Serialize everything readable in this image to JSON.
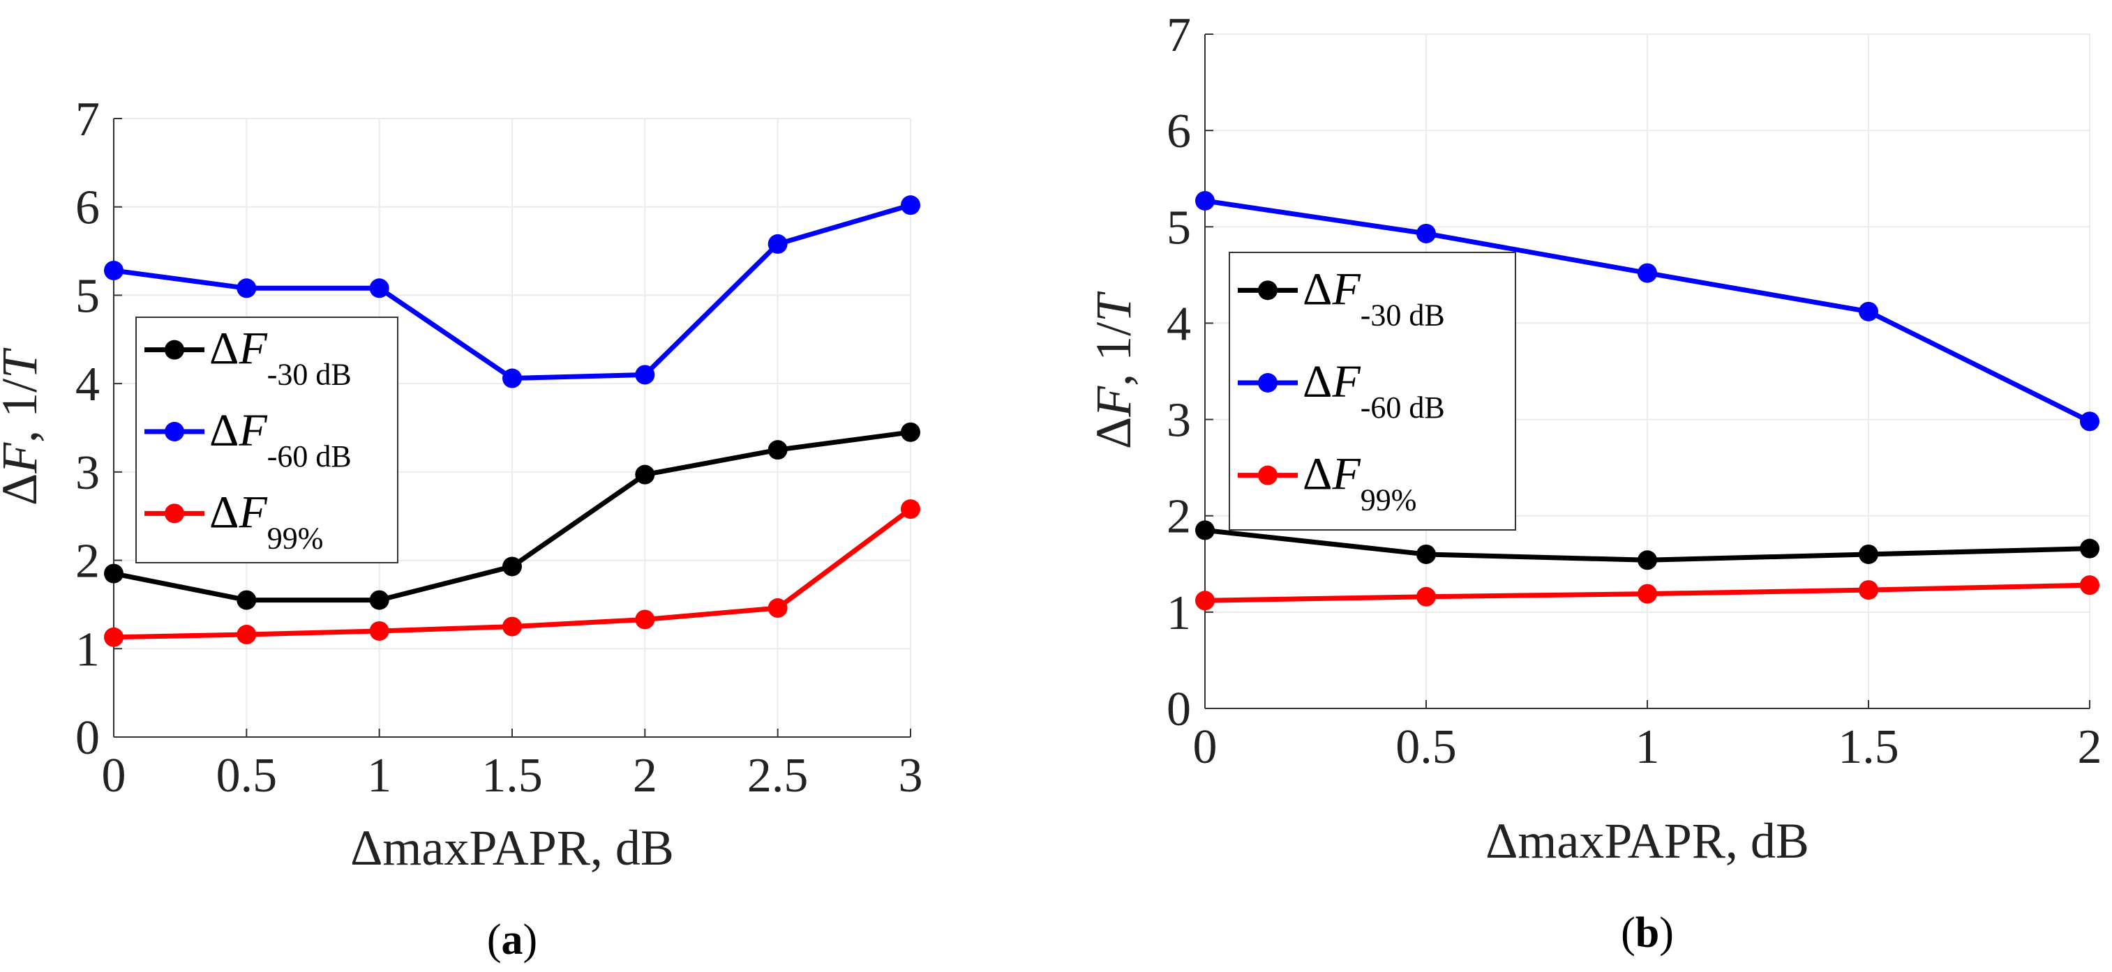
{
  "chart_data": [
    {
      "type": "line",
      "panel": "a",
      "caption_letter": "a",
      "xlabel": "ΔmaxPAPR, dB",
      "ylabel_delta": "Δ",
      "ylabel_var": "F",
      "ylabel_unit": ", 1/",
      "ylabel_T": "T",
      "xlim": [
        0,
        3
      ],
      "ylim": [
        0,
        7
      ],
      "xticks": [
        0,
        0.5,
        1,
        1.5,
        2,
        2.5,
        3
      ],
      "xtick_labels": [
        "0",
        "0.5",
        "1",
        "1.5",
        "2",
        "2.5",
        "3"
      ],
      "yticks": [
        0,
        1,
        2,
        3,
        4,
        5,
        6,
        7
      ],
      "ytick_labels": [
        "0",
        "1",
        "2",
        "3",
        "4",
        "5",
        "6",
        "7"
      ],
      "grid": true,
      "legend_position": "center-left",
      "x": [
        0,
        0.5,
        1,
        1.5,
        2,
        2.5,
        3
      ],
      "series": [
        {
          "name": "ΔF-30 dB",
          "delta": "Δ",
          "var": "F",
          "sub": "-30 dB",
          "color": "#000000",
          "values": [
            1.85,
            1.55,
            1.55,
            1.93,
            2.97,
            3.25,
            3.45
          ]
        },
        {
          "name": "ΔF-60 dB",
          "delta": "Δ",
          "var": "F",
          "sub": "-60 dB",
          "color": "#0000ff",
          "values": [
            5.28,
            5.08,
            5.08,
            4.06,
            4.1,
            5.58,
            6.02
          ]
        },
        {
          "name": "ΔF99%",
          "delta": "Δ",
          "var": "F",
          "sub": "99%",
          "color": "#ff0000",
          "values": [
            1.13,
            1.16,
            1.2,
            1.25,
            1.33,
            1.46,
            2.58
          ]
        }
      ]
    },
    {
      "type": "line",
      "panel": "b",
      "caption_letter": "b",
      "xlabel": "ΔmaxPAPR, dB",
      "ylabel_delta": "Δ",
      "ylabel_var": "F",
      "ylabel_unit": ", 1/",
      "ylabel_T": "T",
      "xlim": [
        0,
        2
      ],
      "ylim": [
        0,
        7
      ],
      "xticks": [
        0,
        0.5,
        1,
        1.5,
        2
      ],
      "xtick_labels": [
        "0",
        "0.5",
        "1",
        "1.5",
        "2"
      ],
      "yticks": [
        0,
        1,
        2,
        3,
        4,
        5,
        6,
        7
      ],
      "ytick_labels": [
        "0",
        "1",
        "2",
        "3",
        "4",
        "5",
        "6",
        "7"
      ],
      "grid": true,
      "legend_position": "center-left",
      "x": [
        0,
        0.5,
        1,
        1.5,
        2
      ],
      "series": [
        {
          "name": "ΔF-30 dB",
          "delta": "Δ",
          "var": "F",
          "sub": "-30 dB",
          "color": "#000000",
          "values": [
            1.85,
            1.6,
            1.54,
            1.6,
            1.66
          ]
        },
        {
          "name": "ΔF-60 dB",
          "delta": "Δ",
          "var": "F",
          "sub": "-60 dB",
          "color": "#0000ff",
          "values": [
            5.27,
            4.93,
            4.52,
            4.12,
            2.98
          ]
        },
        {
          "name": "ΔF99%",
          "delta": "Δ",
          "var": "F",
          "sub": "99%",
          "color": "#ff0000",
          "values": [
            1.12,
            1.16,
            1.19,
            1.23,
            1.28
          ]
        }
      ]
    }
  ]
}
